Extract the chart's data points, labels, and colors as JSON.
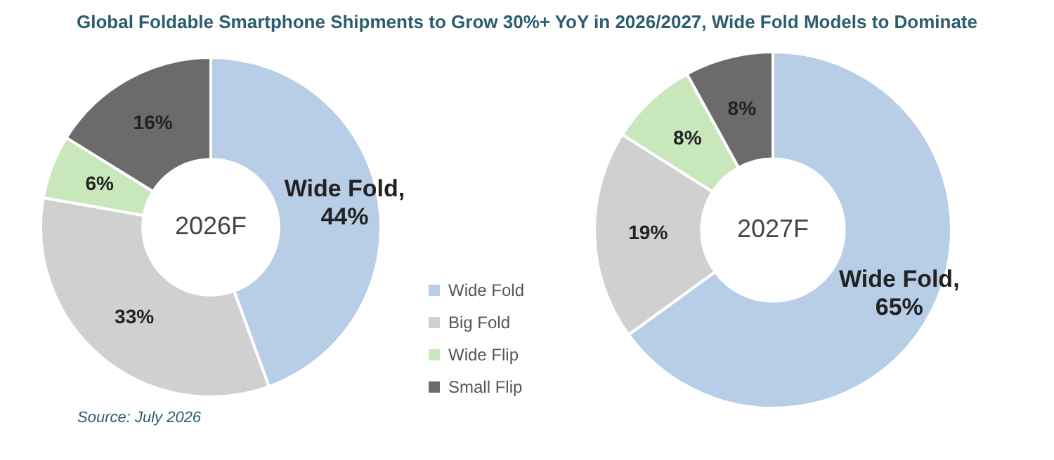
{
  "chart_data": [
    {
      "type": "donut",
      "title": "Global Foldable Smartphone Shipments to Grow 30%+ YoY in 2026/2027, Wide Fold Models to Dominate",
      "subtitle": "2026F",
      "categories": [
        "Wide Fold",
        "Big Fold",
        "Wide Flip",
        "Small Flip"
      ],
      "values": [
        44,
        33,
        6,
        16
      ],
      "colors": [
        "#b8cde6",
        "#d0d0d0",
        "#c8e8bc",
        "#6b6b6b"
      ],
      "value_labels": [
        "Wide Fold, 44%",
        "33%",
        "6%",
        "16%"
      ],
      "legend": "right",
      "annotations": [
        "Source: July 2026"
      ]
    },
    {
      "type": "donut",
      "subtitle": "2027F",
      "categories": [
        null,
        null,
        null,
        null
      ],
      "values": [
        65,
        19,
        8,
        8
      ],
      "colors": [
        "#b8cde6",
        "#d0d0d0",
        "#c8e8bc",
        "#6b6b6b"
      ],
      "value_labels": [
        "Wide Fold, 65%",
        "19%",
        "8%",
        "8%"
      ]
    }
  ]
}
